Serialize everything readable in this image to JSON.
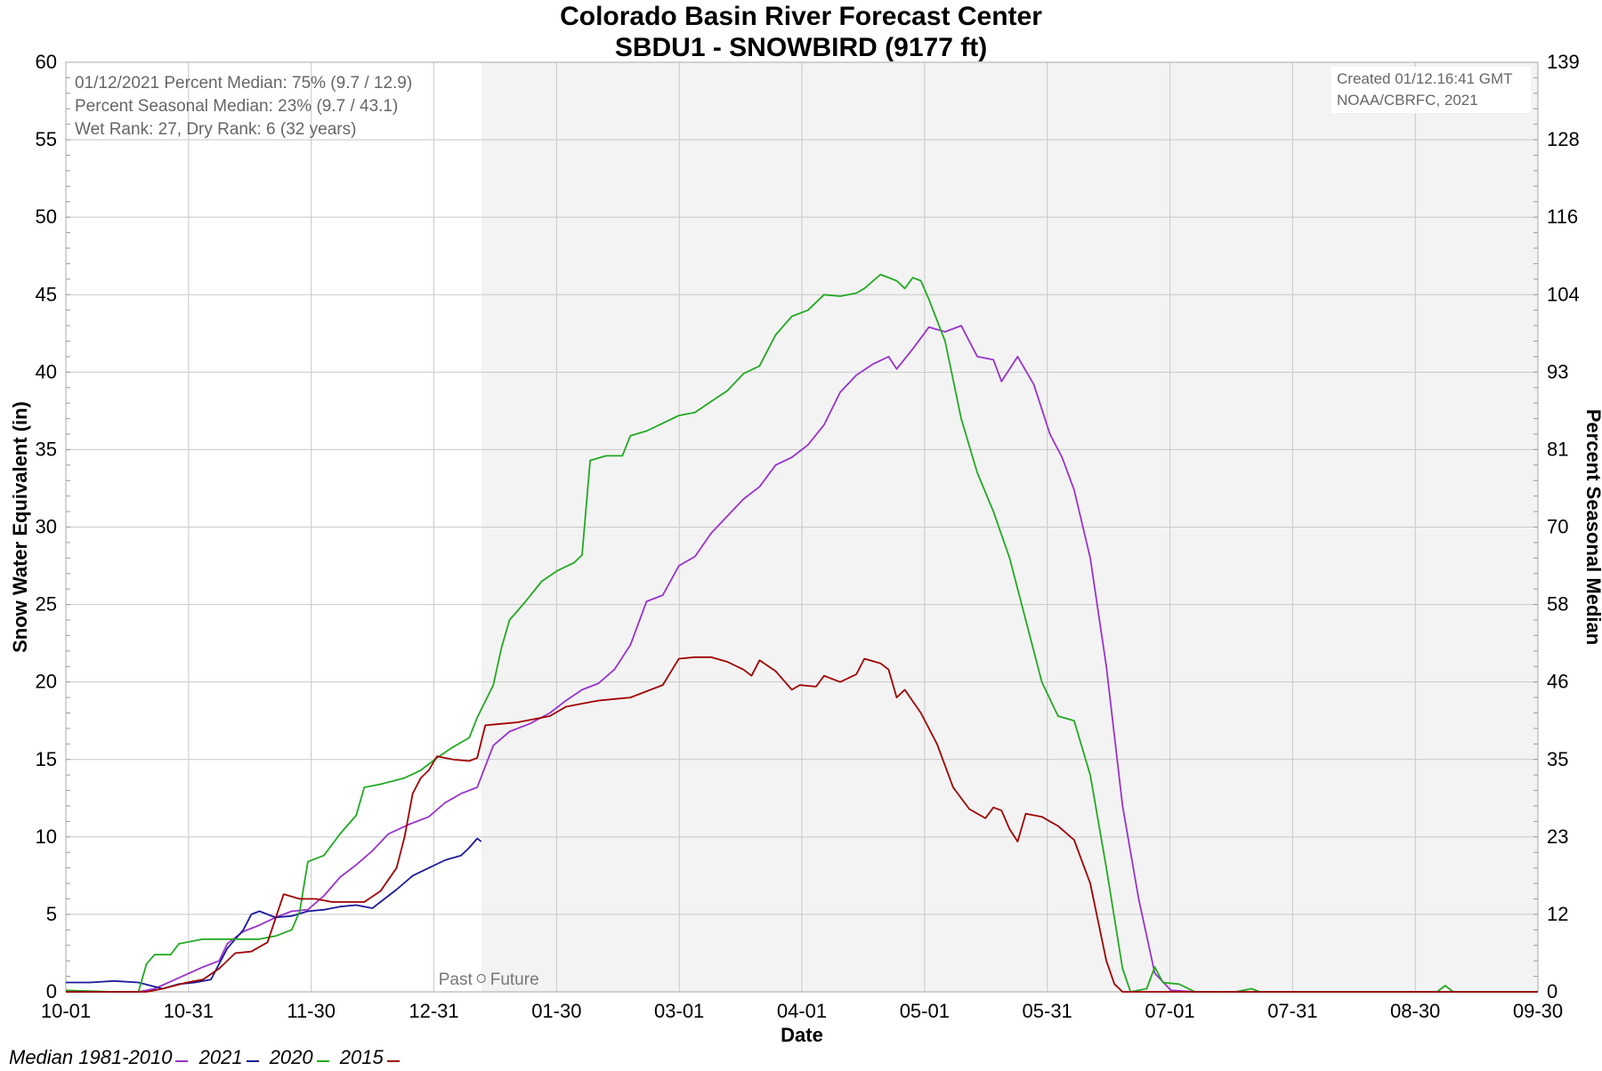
{
  "chart_data": {
    "type": "line",
    "title": "Colorado Basin River Forecast Center",
    "subtitle": "SBDU1 - SNOWBIRD (9177 ft)",
    "xlabel": "Date",
    "ylabel": "Snow Water Equivalent (in)",
    "y2label": "Percent Seasonal Median",
    "ylim": [
      0,
      60
    ],
    "y_ticks": [
      "0",
      "5",
      "10",
      "15",
      "20",
      "25",
      "30",
      "35",
      "40",
      "45",
      "50",
      "55",
      "60"
    ],
    "y2_ticks": [
      "0",
      "12",
      "23",
      "35",
      "46",
      "58",
      "70",
      "81",
      "93",
      "104",
      "116",
      "128",
      "139"
    ],
    "x_ticks": [
      "10-01",
      "10-31",
      "11-30",
      "12-31",
      "01-30",
      "03-01",
      "04-01",
      "05-01",
      "05-31",
      "07-01",
      "07-31",
      "08-30",
      "09-30"
    ],
    "xlim": [
      0,
      365
    ],
    "grid": true,
    "past_future_label": "Past",
    "future_label": "Future",
    "past_future_x": 103,
    "info_lines": [
      "01/12/2021 Percent Median: 75% (9.7 / 12.9)",
      "Percent Seasonal Median: 23% (9.7 / 43.1)",
      "Wet Rank: 27, Dry Rank: 6  (32 years)"
    ],
    "created_lines": [
      "Created 01/12.16:41 GMT",
      "NOAA/CBRFC, 2021"
    ],
    "legend_position": "bottom-left",
    "series": [
      {
        "name": "Median 1981-2010",
        "color": "#9933cc",
        "points": [
          [
            0,
            0
          ],
          [
            18,
            0
          ],
          [
            22,
            0.2
          ],
          [
            28,
            0.9
          ],
          [
            34,
            1.6
          ],
          [
            38,
            2.0
          ],
          [
            40,
            3.1
          ],
          [
            44,
            3.9
          ],
          [
            48,
            4.3
          ],
          [
            52,
            4.8
          ],
          [
            56,
            5.2
          ],
          [
            60,
            5.3
          ],
          [
            64,
            6.2
          ],
          [
            68,
            7.4
          ],
          [
            72,
            8.2
          ],
          [
            76,
            9.1
          ],
          [
            80,
            10.2
          ],
          [
            85,
            10.8
          ],
          [
            90,
            11.3
          ],
          [
            94,
            12.2
          ],
          [
            98,
            12.8
          ],
          [
            102,
            13.2
          ],
          [
            106,
            15.9
          ],
          [
            110,
            16.8
          ],
          [
            115,
            17.3
          ],
          [
            120,
            18.0
          ],
          [
            124,
            18.8
          ],
          [
            128,
            19.5
          ],
          [
            132,
            19.9
          ],
          [
            136,
            20.8
          ],
          [
            140,
            22.4
          ],
          [
            144,
            25.2
          ],
          [
            148,
            25.6
          ],
          [
            152,
            27.5
          ],
          [
            156,
            28.1
          ],
          [
            160,
            29.6
          ],
          [
            164,
            30.7
          ],
          [
            168,
            31.8
          ],
          [
            172,
            32.6
          ],
          [
            176,
            34.0
          ],
          [
            180,
            34.5
          ],
          [
            184,
            35.3
          ],
          [
            188,
            36.6
          ],
          [
            192,
            38.7
          ],
          [
            196,
            39.8
          ],
          [
            200,
            40.5
          ],
          [
            204,
            41.0
          ],
          [
            206,
            40.2
          ],
          [
            210,
            41.5
          ],
          [
            214,
            42.9
          ],
          [
            218,
            42.6
          ],
          [
            222,
            43.0
          ],
          [
            226,
            41.0
          ],
          [
            230,
            40.8
          ],
          [
            232,
            39.4
          ],
          [
            236,
            41.0
          ],
          [
            240,
            39.2
          ],
          [
            244,
            36.0
          ],
          [
            247,
            34.5
          ],
          [
            250,
            32.4
          ],
          [
            254,
            28.0
          ],
          [
            258,
            21.0
          ],
          [
            262,
            12.0
          ],
          [
            266,
            6.0
          ],
          [
            270,
            1.2
          ],
          [
            274,
            0.1
          ],
          [
            280,
            0
          ],
          [
            365,
            0
          ]
        ]
      },
      {
        "name": "2021",
        "color": "#1a1a99",
        "points": [
          [
            0,
            0.6
          ],
          [
            6,
            0.6
          ],
          [
            12,
            0.7
          ],
          [
            18,
            0.6
          ],
          [
            24,
            0.2
          ],
          [
            28,
            0.5
          ],
          [
            32,
            0.6
          ],
          [
            36,
            0.8
          ],
          [
            40,
            2.8
          ],
          [
            44,
            4.0
          ],
          [
            46,
            5.0
          ],
          [
            48,
            5.2
          ],
          [
            52,
            4.8
          ],
          [
            56,
            4.9
          ],
          [
            60,
            5.2
          ],
          [
            64,
            5.3
          ],
          [
            68,
            5.5
          ],
          [
            72,
            5.6
          ],
          [
            76,
            5.4
          ],
          [
            80,
            6.2
          ],
          [
            82,
            6.6
          ],
          [
            86,
            7.5
          ],
          [
            90,
            8.0
          ],
          [
            94,
            8.5
          ],
          [
            98,
            8.8
          ],
          [
            100,
            9.3
          ],
          [
            102,
            9.9
          ],
          [
            103,
            9.7
          ]
        ]
      },
      {
        "name": "2020",
        "color": "#22aa22",
        "points": [
          [
            0,
            0.1
          ],
          [
            12,
            0
          ],
          [
            18,
            0
          ],
          [
            20,
            1.8
          ],
          [
            22,
            2.4
          ],
          [
            26,
            2.4
          ],
          [
            28,
            3.1
          ],
          [
            34,
            3.4
          ],
          [
            42,
            3.4
          ],
          [
            48,
            3.4
          ],
          [
            52,
            3.6
          ],
          [
            56,
            4.0
          ],
          [
            58,
            5.2
          ],
          [
            60,
            8.4
          ],
          [
            64,
            8.8
          ],
          [
            68,
            10.2
          ],
          [
            72,
            11.4
          ],
          [
            74,
            13.2
          ],
          [
            78,
            13.4
          ],
          [
            84,
            13.8
          ],
          [
            88,
            14.3
          ],
          [
            92,
            15.1
          ],
          [
            96,
            15.8
          ],
          [
            100,
            16.4
          ],
          [
            102,
            17.7
          ],
          [
            106,
            19.8
          ],
          [
            108,
            22.2
          ],
          [
            110,
            24.0
          ],
          [
            114,
            25.2
          ],
          [
            118,
            26.5
          ],
          [
            122,
            27.2
          ],
          [
            126,
            27.7
          ],
          [
            128,
            28.2
          ],
          [
            130,
            34.3
          ],
          [
            134,
            34.6
          ],
          [
            138,
            34.6
          ],
          [
            140,
            35.9
          ],
          [
            144,
            36.2
          ],
          [
            148,
            36.7
          ],
          [
            152,
            37.2
          ],
          [
            156,
            37.4
          ],
          [
            160,
            38.1
          ],
          [
            164,
            38.8
          ],
          [
            168,
            39.9
          ],
          [
            172,
            40.4
          ],
          [
            176,
            42.4
          ],
          [
            180,
            43.6
          ],
          [
            184,
            44.0
          ],
          [
            188,
            45.0
          ],
          [
            192,
            44.9
          ],
          [
            196,
            45.1
          ],
          [
            198,
            45.4
          ],
          [
            202,
            46.3
          ],
          [
            206,
            45.9
          ],
          [
            208,
            45.4
          ],
          [
            210,
            46.1
          ],
          [
            212,
            45.9
          ],
          [
            214,
            44.7
          ],
          [
            218,
            42.0
          ],
          [
            222,
            37.0
          ],
          [
            226,
            33.5
          ],
          [
            230,
            31.0
          ],
          [
            234,
            28.0
          ],
          [
            238,
            24.0
          ],
          [
            242,
            20.0
          ],
          [
            246,
            17.8
          ],
          [
            250,
            17.5
          ],
          [
            254,
            14.0
          ],
          [
            258,
            8.0
          ],
          [
            262,
            1.5
          ],
          [
            264,
            0
          ],
          [
            268,
            0.2
          ],
          [
            270,
            1.6
          ],
          [
            272,
            0.6
          ],
          [
            276,
            0.5
          ],
          [
            280,
            0
          ],
          [
            290,
            0
          ],
          [
            294,
            0.2
          ],
          [
            296,
            0
          ],
          [
            340,
            0
          ],
          [
            342,
            0.4
          ],
          [
            344,
            0
          ],
          [
            365,
            0
          ]
        ]
      },
      {
        "name": "2015",
        "color": "#a00000",
        "points": [
          [
            0,
            0
          ],
          [
            20,
            0
          ],
          [
            24,
            0.2
          ],
          [
            30,
            0.6
          ],
          [
            34,
            0.8
          ],
          [
            38,
            1.5
          ],
          [
            42,
            2.5
          ],
          [
            46,
            2.6
          ],
          [
            50,
            3.2
          ],
          [
            54,
            6.3
          ],
          [
            58,
            6.0
          ],
          [
            62,
            6.0
          ],
          [
            66,
            5.8
          ],
          [
            70,
            5.8
          ],
          [
            74,
            5.8
          ],
          [
            78,
            6.5
          ],
          [
            82,
            8.0
          ],
          [
            84,
            10.0
          ],
          [
            86,
            12.8
          ],
          [
            88,
            13.8
          ],
          [
            90,
            14.3
          ],
          [
            92,
            15.2
          ],
          [
            96,
            15.0
          ],
          [
            100,
            14.9
          ],
          [
            102,
            15.1
          ],
          [
            104,
            17.2
          ],
          [
            108,
            17.3
          ],
          [
            112,
            17.4
          ],
          [
            116,
            17.6
          ],
          [
            120,
            17.8
          ],
          [
            124,
            18.4
          ],
          [
            128,
            18.6
          ],
          [
            132,
            18.8
          ],
          [
            136,
            18.9
          ],
          [
            140,
            19.0
          ],
          [
            144,
            19.4
          ],
          [
            148,
            19.8
          ],
          [
            152,
            21.5
          ],
          [
            156,
            21.6
          ],
          [
            160,
            21.6
          ],
          [
            164,
            21.3
          ],
          [
            168,
            20.8
          ],
          [
            170,
            20.4
          ],
          [
            172,
            21.4
          ],
          [
            176,
            20.7
          ],
          [
            180,
            19.5
          ],
          [
            182,
            19.8
          ],
          [
            186,
            19.7
          ],
          [
            188,
            20.4
          ],
          [
            192,
            20.0
          ],
          [
            196,
            20.5
          ],
          [
            198,
            21.5
          ],
          [
            202,
            21.2
          ],
          [
            204,
            20.8
          ],
          [
            206,
            19.0
          ],
          [
            208,
            19.5
          ],
          [
            212,
            18.0
          ],
          [
            216,
            16.0
          ],
          [
            220,
            13.2
          ],
          [
            224,
            11.8
          ],
          [
            228,
            11.2
          ],
          [
            230,
            11.9
          ],
          [
            232,
            11.7
          ],
          [
            234,
            10.5
          ],
          [
            236,
            9.7
          ],
          [
            238,
            11.5
          ],
          [
            242,
            11.3
          ],
          [
            246,
            10.7
          ],
          [
            250,
            9.8
          ],
          [
            254,
            7.0
          ],
          [
            258,
            2.0
          ],
          [
            260,
            0.5
          ],
          [
            262,
            0
          ],
          [
            365,
            0
          ]
        ]
      }
    ]
  }
}
